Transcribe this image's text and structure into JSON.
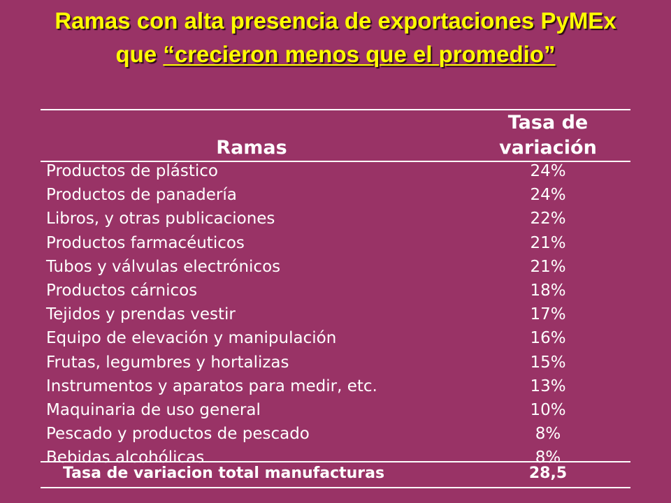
{
  "title": {
    "line1": "Ramas con alta presencia de exportaciones PyMEx",
    "line2_prefix": "que ",
    "line2_underlined": "“crecieron menos que el promedio”"
  },
  "table": {
    "headers": {
      "ramas": "Ramas",
      "tasa_line1": "Tasa de",
      "tasa_line2": "variación"
    },
    "rows": [
      {
        "rama": "Productos de plástico",
        "tasa": "24%"
      },
      {
        "rama": "Productos de panadería",
        "tasa": "24%"
      },
      {
        "rama": "Libros, y otras publicaciones",
        "tasa": "22%"
      },
      {
        "rama": "Productos farmacéuticos",
        "tasa": "21%"
      },
      {
        "rama": "Tubos y válvulas electrónicos",
        "tasa": "21%"
      },
      {
        "rama": "Productos cárnicos",
        "tasa": "18%"
      },
      {
        "rama": "Tejidos y prendas vestir",
        "tasa": "17%"
      },
      {
        "rama": "Equipo de elevación y manipulación",
        "tasa": "16%"
      },
      {
        "rama": "Frutas, legumbres y hortalizas",
        "tasa": "15%"
      },
      {
        "rama": "Instrumentos y aparatos para medir, etc.",
        "tasa": "13%"
      },
      {
        "rama": "Maquinaria de uso general",
        "tasa": "10%"
      },
      {
        "rama": "Pescado y productos de pescado",
        "tasa": "8%"
      },
      {
        "rama": "Bebidas alcohólicas",
        "tasa": "8%"
      }
    ],
    "total": {
      "rama": "Tasa de variacion total manufacturas",
      "tasa": "28,5"
    }
  },
  "colors": {
    "background": "#993366",
    "title": "#FFFF00",
    "text": "#FFFFFF"
  }
}
